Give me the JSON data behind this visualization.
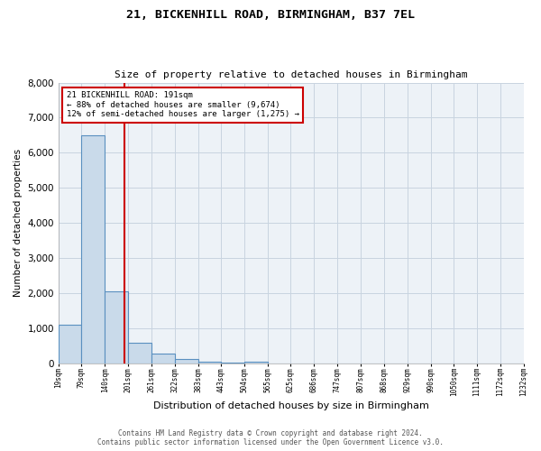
{
  "title1": "21, BICKENHILL ROAD, BIRMINGHAM, B37 7EL",
  "title2": "Size of property relative to detached houses in Birmingham",
  "xlabel": "Distribution of detached houses by size in Birmingham",
  "ylabel": "Number of detached properties",
  "annotation_line1": "21 BICKENHILL ROAD: 191sqm",
  "annotation_line2": "← 88% of detached houses are smaller (9,674)",
  "annotation_line3": "12% of semi-detached houses are larger (1,275) →",
  "footer1": "Contains HM Land Registry data © Crown copyright and database right 2024.",
  "footer2": "Contains public sector information licensed under the Open Government Licence v3.0.",
  "bin_edges": [
    19,
    79,
    140,
    201,
    261,
    322,
    383,
    443,
    504,
    565,
    625,
    686,
    747,
    807,
    868,
    929,
    990,
    1050,
    1111,
    1172,
    1232
  ],
  "bin_counts": [
    1100,
    6500,
    2050,
    600,
    280,
    130,
    60,
    20,
    60,
    0,
    0,
    0,
    0,
    0,
    0,
    0,
    0,
    0,
    0,
    0
  ],
  "bar_color": "#c9daea",
  "bar_edge_color": "#5a90c0",
  "vline_color": "#cc0000",
  "vline_x": 191,
  "annotation_box_color": "#cc0000",
  "grid_color": "#c8d4e0",
  "background_color": "#edf2f7",
  "ylim": [
    0,
    8000
  ],
  "yticks": [
    0,
    1000,
    2000,
    3000,
    4000,
    5000,
    6000,
    7000,
    8000
  ]
}
